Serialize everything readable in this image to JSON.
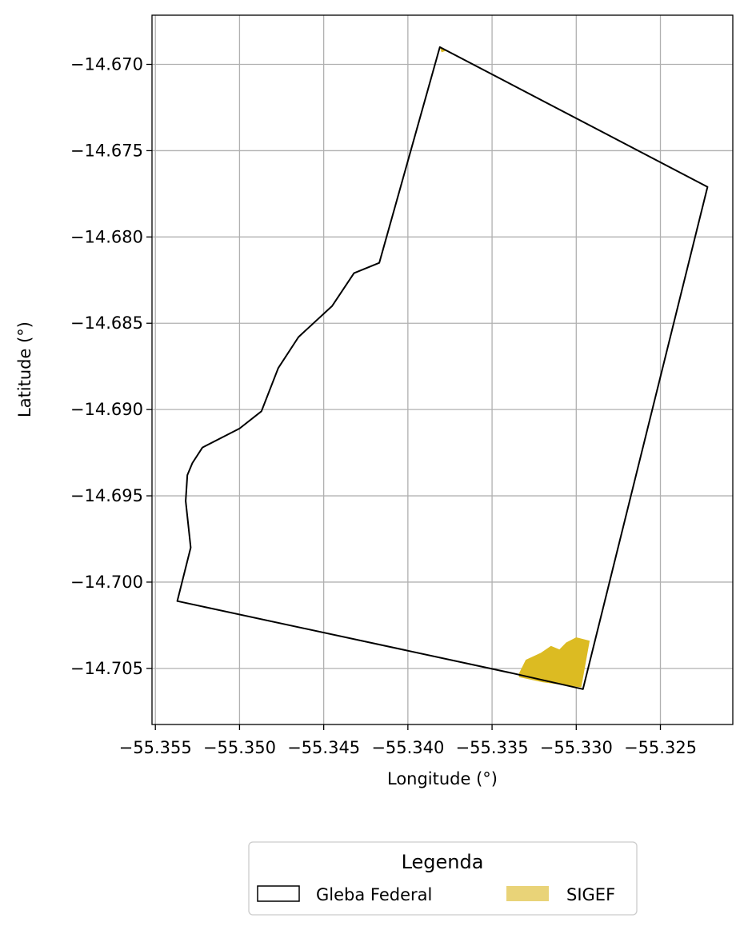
{
  "chart_data": {
    "type": "map",
    "xlabel": "Longitude (°)",
    "ylabel": "Latitude (°)",
    "xlim": [
      -55.3552,
      -55.3207
    ],
    "ylim": [
      -14.70825,
      -14.66715
    ],
    "grid": true,
    "xticks": [
      -55.355,
      -55.35,
      -55.345,
      -55.34,
      -55.335,
      -55.33,
      -55.325
    ],
    "xtick_labels": [
      "−55.355",
      "−55.350",
      "−55.345",
      "−55.340",
      "−55.335",
      "−55.330",
      "−55.325"
    ],
    "yticks": [
      -14.67,
      -14.675,
      -14.68,
      -14.685,
      -14.69,
      -14.695,
      -14.7,
      -14.705
    ],
    "ytick_labels": [
      "−14.670",
      "−14.675",
      "−14.680",
      "−14.685",
      "−14.690",
      "−14.695",
      "−14.700",
      "−14.705"
    ],
    "legend": {
      "title": "Legenda",
      "placement": "bottom-center-outside",
      "entries": [
        {
          "label": "Gleba Federal",
          "style": "outline",
          "edge_color": "#000000"
        },
        {
          "label": "SIGEF",
          "style": "fill",
          "color": "#e9d378"
        }
      ]
    },
    "layers": [
      {
        "name": "Gleba Federal",
        "style": "outline",
        "color": "#000000",
        "polygon": [
          [
            -55.3381,
            -14.669
          ],
          [
            -55.3222,
            -14.6771
          ],
          [
            -55.3296,
            -14.7062
          ],
          [
            -55.3337,
            -14.7053
          ],
          [
            -55.3537,
            -14.7011
          ],
          [
            -55.3529,
            -14.698
          ],
          [
            -55.3532,
            -14.6953
          ],
          [
            -55.3531,
            -14.6938
          ],
          [
            -55.3528,
            -14.6931
          ],
          [
            -55.3522,
            -14.6922
          ],
          [
            -55.35,
            -14.6911
          ],
          [
            -55.3487,
            -14.6901
          ],
          [
            -55.3477,
            -14.6876
          ],
          [
            -55.3465,
            -14.6858
          ],
          [
            -55.3445,
            -14.684
          ],
          [
            -55.3432,
            -14.6821
          ],
          [
            -55.3417,
            -14.6815
          ],
          [
            -55.3381,
            -14.669
          ]
        ]
      },
      {
        "name": "SIGEF",
        "style": "fill",
        "color": "#dcbb22",
        "polygons": [
          [
            [
              -55.3334,
              -14.7053
            ],
            [
              -55.333,
              -14.7045
            ],
            [
              -55.3321,
              -14.7041
            ],
            [
              -55.3315,
              -14.7037
            ],
            [
              -55.331,
              -14.7039
            ],
            [
              -55.3306,
              -14.7035
            ],
            [
              -55.33,
              -14.7032
            ],
            [
              -55.3292,
              -14.7034
            ],
            [
              -55.3297,
              -14.7061
            ],
            [
              -55.332,
              -14.7058
            ],
            [
              -55.3334,
              -14.7055
            ]
          ],
          [
            [
              -55.3381,
              -14.669
            ],
            [
              -55.3377,
              -14.6692
            ],
            [
              -55.338,
              -14.6693
            ]
          ]
        ]
      }
    ]
  }
}
